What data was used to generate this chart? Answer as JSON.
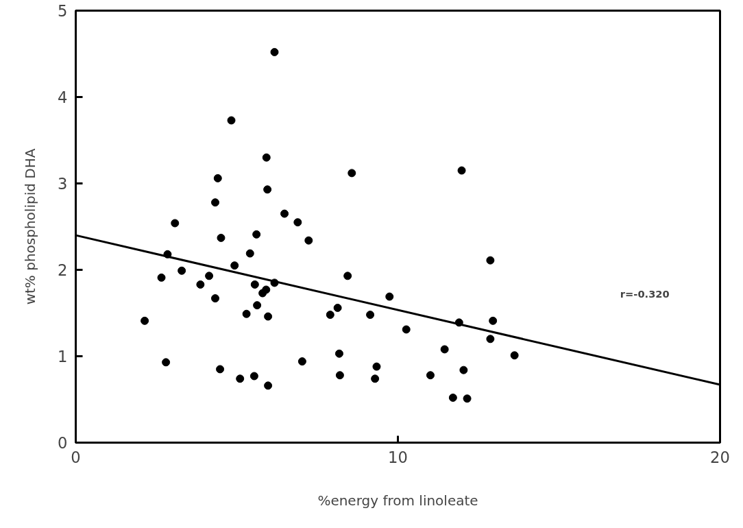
{
  "chart_data": {
    "type": "scatter",
    "xlabel": "%energy from linoleate",
    "ylabel": "wt% phospholipid DHA",
    "xlim": [
      0,
      20
    ],
    "ylim": [
      0,
      5
    ],
    "xticks": [
      0,
      10,
      20
    ],
    "yticks": [
      0,
      1,
      2,
      3,
      4,
      5
    ],
    "grid": false,
    "annotations": [
      "r=-0.320"
    ],
    "series": [
      {
        "marker": "circle",
        "color": "#000000",
        "x": [
          6.17,
          4.83,
          5.92,
          4.41,
          5.95,
          4.33,
          6.48,
          6.89,
          3.08,
          5.61,
          4.51,
          7.23,
          2.85,
          5.41,
          4.93,
          3.29,
          2.66,
          4.14,
          3.87,
          5.56,
          6.17,
          5.8,
          5.91,
          4.33,
          5.63,
          5.3,
          5.97,
          2.14,
          2.8,
          7.03,
          4.48,
          5.54,
          5.1,
          5.97,
          8.57,
          11.98,
          8.44,
          12.87,
          9.74,
          8.13,
          7.9,
          9.14,
          10.26,
          11.9,
          12.95,
          12.87,
          11.45,
          13.62,
          8.18,
          9.34,
          8.2,
          9.29,
          11.01,
          12.04,
          11.71,
          12.15
        ],
        "values": [
          4.52,
          3.73,
          3.3,
          3.06,
          2.93,
          2.78,
          2.65,
          2.55,
          2.54,
          2.41,
          2.37,
          2.34,
          2.18,
          2.19,
          2.05,
          1.99,
          1.91,
          1.93,
          1.83,
          1.83,
          1.85,
          1.73,
          1.77,
          1.67,
          1.59,
          1.49,
          1.46,
          1.41,
          0.93,
          0.94,
          0.85,
          0.77,
          0.74,
          0.66,
          3.12,
          3.15,
          1.93,
          2.11,
          1.69,
          1.56,
          1.48,
          1.48,
          1.31,
          1.39,
          1.41,
          1.2,
          1.08,
          1.01,
          1.03,
          0.88,
          0.78,
          0.74,
          0.78,
          0.84,
          0.52,
          0.51
        ]
      },
      {
        "type": "line",
        "color": "#000000",
        "x": [
          0,
          20
        ],
        "values": [
          2.4,
          0.67
        ],
        "line_style": "solid"
      }
    ]
  }
}
